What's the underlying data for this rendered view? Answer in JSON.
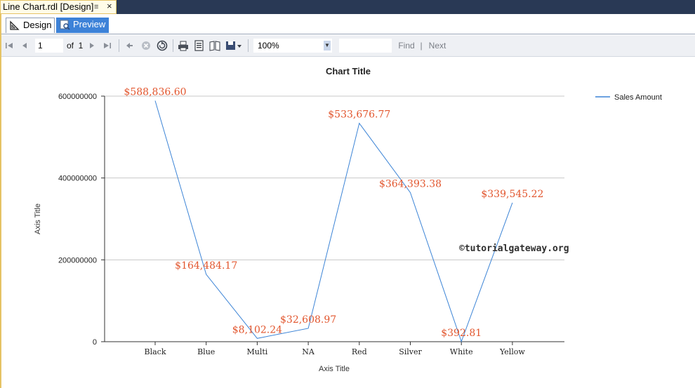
{
  "document": {
    "tab_title": "Line Chart.rdl [Design]",
    "pin_glyph": "≡",
    "close_glyph": "×"
  },
  "view_tabs": {
    "design_label": "Design",
    "preview_label": "Preview"
  },
  "toolbar": {
    "page_value": "1",
    "of_label": "of",
    "total_pages": "1",
    "zoom_value": "100%",
    "find_label": "Find",
    "separator": "|",
    "next_label": "Next"
  },
  "colors": {
    "line": "#3c84d6",
    "data_label": "#e2562e",
    "accent": "#3d82d8"
  },
  "watermark": "©tutorialgateway.org",
  "chart_data": {
    "type": "line",
    "title": "Chart Title",
    "xlabel": "Axis Title",
    "ylabel": "Axis Title",
    "categories": [
      "Black",
      "Blue",
      "Multi",
      "NA",
      "Red",
      "Silver",
      "White",
      "Yellow"
    ],
    "series": [
      {
        "name": "Sales Amount",
        "color": "#3c84d6",
        "values": [
          588836.6,
          164484.17,
          8102.24,
          32608.97,
          533676.77,
          364393.38,
          392.81,
          339545.22
        ],
        "data_labels": [
          "$588,836.60",
          "$164,484.17",
          "$8,102.24",
          "$32,608.97",
          "$533,676.77",
          "$364,393.38",
          "$392.81",
          "$339,545.22"
        ]
      }
    ],
    "ylim": [
      0,
      600000000
    ],
    "yticks": [
      0,
      200000000,
      400000000,
      600000000
    ],
    "ytick_labels": [
      "0",
      "200000000",
      "400000000",
      "600000000"
    ],
    "grid": true,
    "legend_position": "top-right"
  }
}
